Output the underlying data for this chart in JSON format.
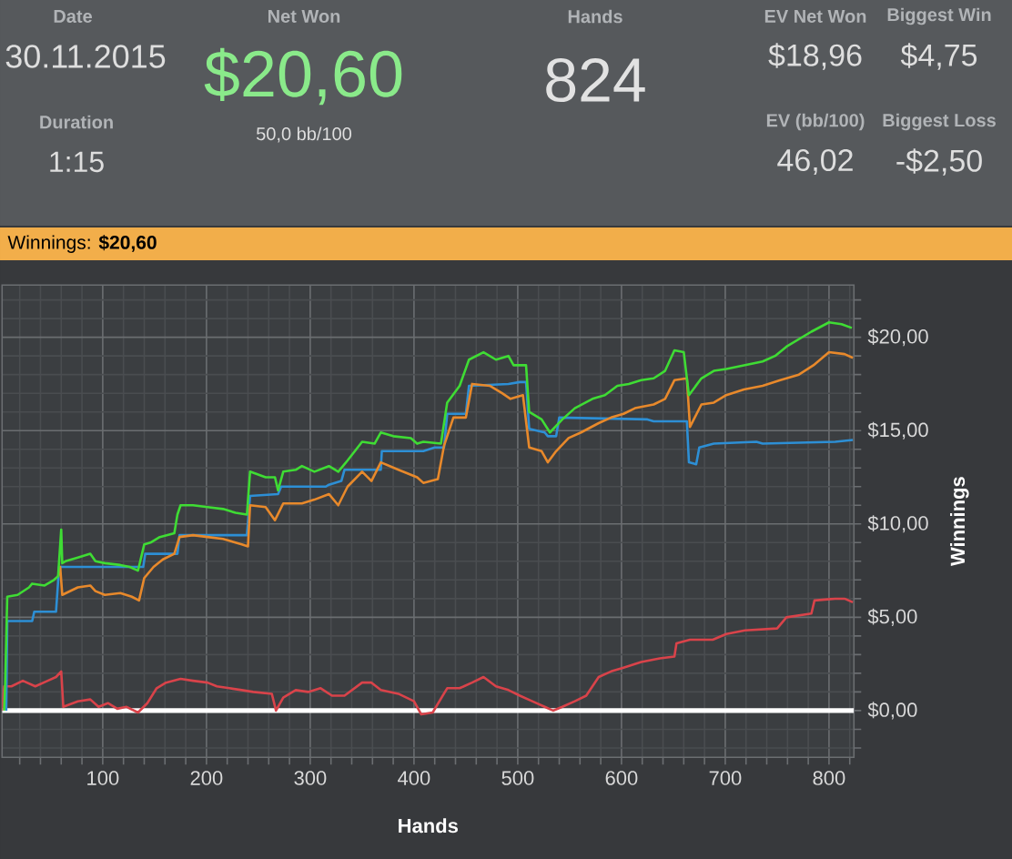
{
  "chart_data": [
    {
      "type": "other",
      "annotations": [
        "Date",
        "30.11.2015",
        "Duration",
        "1:15",
        "Net Won",
        "$20,60",
        "50,0 bb/100",
        "Hands",
        "824",
        "EV Net Won",
        "$18,96",
        "Biggest Win",
        "$4,75",
        "EV (bb/100)",
        "46,02",
        "Biggest Loss",
        "-$2,50"
      ]
    },
    {
      "type": "line",
      "title": "Winnings: **$20,60**",
      "xlabel": "Hands",
      "ylabel": "Winnings",
      "xlim": [
        3,
        824
      ],
      "ylim": [
        -2.5,
        22.8
      ],
      "xticks": [
        {
          "value": 20,
          "label": null
        },
        {
          "value": 40,
          "label": null
        },
        {
          "value": 60,
          "label": null
        },
        {
          "value": 80,
          "label": null
        },
        100,
        {
          "value": 120,
          "label": null
        },
        {
          "value": 140,
          "label": null
        },
        {
          "value": 160,
          "label": null
        },
        {
          "value": 180,
          "label": null
        },
        200,
        {
          "value": 220,
          "label": null
        },
        {
          "value": 240,
          "label": null
        },
        {
          "value": 260,
          "label": null
        },
        {
          "value": 280,
          "label": null
        },
        300,
        {
          "value": 320,
          "label": null
        },
        {
          "value": 340,
          "label": null
        },
        {
          "value": 360,
          "label": null
        },
        {
          "value": 380,
          "label": null
        },
        400,
        {
          "value": 420,
          "label": null
        },
        {
          "value": 440,
          "label": null
        },
        {
          "value": 460,
          "label": null
        },
        {
          "value": 480,
          "label": null
        },
        500,
        {
          "value": 520,
          "label": null
        },
        {
          "value": 540,
          "label": null
        },
        {
          "value": 560,
          "label": null
        },
        {
          "value": 580,
          "label": null
        },
        600,
        {
          "value": 620,
          "label": null
        },
        {
          "value": 640,
          "label": null
        },
        {
          "value": 660,
          "label": null
        },
        {
          "value": 680,
          "label": null
        },
        700,
        {
          "value": 720,
          "label": null
        },
        {
          "value": 740,
          "label": null
        },
        {
          "value": 760,
          "label": null
        },
        {
          "value": 780,
          "label": null
        },
        800,
        {
          "value": 820,
          "label": null
        }
      ],
      "yticks": [
        {
          "value": -2,
          "label": null
        },
        {
          "value": -1,
          "label": null
        },
        {
          "value": 0,
          "label": "$0,00"
        },
        {
          "value": 1,
          "label": null
        },
        {
          "value": 2,
          "label": null
        },
        {
          "value": 3,
          "label": null
        },
        {
          "value": 4,
          "label": null
        },
        {
          "value": 5,
          "label": "$5,00"
        },
        {
          "value": 6,
          "label": null
        },
        {
          "value": 7,
          "label": null
        },
        {
          "value": 8,
          "label": null
        },
        {
          "value": 9,
          "label": null
        },
        {
          "value": 10,
          "label": "$10,00"
        },
        {
          "value": 11,
          "label": null
        },
        {
          "value": 12,
          "label": null
        },
        {
          "value": 13,
          "label": null
        },
        {
          "value": 14,
          "label": null
        },
        {
          "value": 15,
          "label": "$15,00"
        },
        {
          "value": 16,
          "label": null
        },
        {
          "value": 17,
          "label": null
        },
        {
          "value": 18,
          "label": null
        },
        {
          "value": 19,
          "label": null
        },
        {
          "value": 20,
          "label": "$20,00"
        },
        {
          "value": 21,
          "label": null
        },
        {
          "value": 22,
          "label": null
        }
      ],
      "grid": true,
      "ref_lines": [
        {
          "axis": "y",
          "value": 0,
          "color": "#ffffff"
        }
      ],
      "series": [
        {
          "color": "#3fdc34",
          "x": [
            5,
            6,
            8,
            18,
            29,
            32,
            44,
            53,
            57,
            60,
            61,
            64,
            76,
            88,
            93,
            102,
            117,
            126,
            134,
            140,
            146,
            155,
            169,
            172,
            175,
            187,
            201,
            216,
            228,
            239,
            242,
            257,
            266,
            269,
            274,
            286,
            292,
            304,
            318,
            327,
            336,
            350,
            362,
            368,
            380,
            397,
            403,
            409,
            426,
            432,
            444,
            453,
            467,
            479,
            491,
            496,
            508,
            511,
            523,
            531,
            543,
            555,
            572,
            584,
            596,
            607,
            619,
            631,
            642,
            651,
            660,
            665,
            677,
            689,
            701,
            718,
            736,
            748,
            759,
            783,
            800,
            812,
            822
          ],
          "values": [
            0.0,
            1.5,
            6.1,
            6.2,
            6.6,
            6.8,
            6.7,
            7.0,
            7.2,
            9.7,
            7.9,
            8.0,
            8.2,
            8.4,
            8.0,
            7.9,
            7.8,
            7.7,
            7.5,
            8.9,
            9.0,
            9.3,
            9.5,
            10.5,
            11.0,
            11.0,
            10.9,
            10.8,
            10.6,
            10.5,
            12.8,
            12.5,
            12.5,
            11.8,
            12.8,
            12.9,
            13.1,
            12.8,
            13.1,
            12.8,
            13.4,
            14.4,
            14.3,
            14.9,
            14.7,
            14.6,
            14.3,
            14.4,
            14.3,
            16.5,
            17.4,
            18.8,
            19.2,
            18.8,
            19.0,
            18.5,
            18.5,
            16.0,
            15.6,
            14.9,
            15.6,
            16.2,
            16.7,
            16.9,
            17.4,
            17.5,
            17.7,
            17.8,
            18.2,
            19.3,
            19.2,
            16.9,
            17.8,
            18.2,
            18.3,
            18.5,
            18.7,
            19.0,
            19.5,
            20.3,
            20.8,
            20.7,
            20.5
          ]
        },
        {
          "color": "#e8892b",
          "x": [
            57,
            59,
            61,
            76,
            88,
            93,
            102,
            117,
            128,
            135,
            140,
            149,
            158,
            169,
            174,
            187,
            201,
            216,
            234,
            240,
            242,
            257,
            266,
            274,
            292,
            304,
            318,
            327,
            336,
            350,
            359,
            368,
            385,
            403,
            409,
            423,
            429,
            438,
            450,
            456,
            473,
            485,
            493,
            505,
            511,
            523,
            529,
            537,
            549,
            561,
            578,
            590,
            602,
            613,
            631,
            642,
            651,
            663,
            666,
            677,
            689,
            701,
            718,
            736,
            753,
            771,
            785,
            800,
            815,
            823
          ],
          "values": [
            7.2,
            7.7,
            6.2,
            6.6,
            6.7,
            6.4,
            6.2,
            6.3,
            6.1,
            5.9,
            7.1,
            7.7,
            8.1,
            8.4,
            9.3,
            9.4,
            9.3,
            9.2,
            8.9,
            8.8,
            11.0,
            10.9,
            10.2,
            11.1,
            11.1,
            11.3,
            11.6,
            11.0,
            12.0,
            12.8,
            12.3,
            13.3,
            12.9,
            12.5,
            12.2,
            12.4,
            14.2,
            15.7,
            15.7,
            17.5,
            17.4,
            17.0,
            16.7,
            16.9,
            14.1,
            13.9,
            13.3,
            13.9,
            14.6,
            14.9,
            15.4,
            15.7,
            15.9,
            16.2,
            16.4,
            16.7,
            17.7,
            17.8,
            15.2,
            16.4,
            16.5,
            16.9,
            17.2,
            17.4,
            17.7,
            18.0,
            18.5,
            19.2,
            19.1,
            18.9
          ]
        },
        {
          "color": "#2d8fd5",
          "x": [
            7,
            8,
            32,
            34,
            55,
            58,
            139,
            141,
            172,
            174,
            239,
            242,
            269,
            272,
            315,
            318,
            330,
            333,
            368,
            369,
            409,
            420,
            429,
            432,
            450,
            453,
            491,
            502,
            508,
            511,
            526,
            529,
            537,
            540,
            625,
            631,
            663,
            665,
            672,
            675,
            689,
            730,
            736,
            806,
            823
          ],
          "values": [
            0.0,
            4.8,
            4.8,
            5.3,
            5.3,
            7.7,
            7.7,
            8.4,
            8.4,
            9.4,
            9.4,
            11.5,
            11.6,
            12.0,
            12.0,
            12.1,
            12.3,
            12.9,
            12.9,
            13.9,
            13.9,
            14.1,
            14.1,
            15.9,
            15.9,
            17.4,
            17.5,
            17.6,
            17.6,
            15.1,
            14.9,
            14.7,
            14.7,
            15.7,
            15.6,
            15.5,
            15.5,
            13.3,
            13.2,
            14.1,
            14.3,
            14.4,
            14.3,
            14.4,
            14.5
          ]
        },
        {
          "color": "#d9434a",
          "x": [
            3,
            5,
            12,
            23,
            35,
            47,
            55,
            60,
            62,
            76,
            88,
            96,
            105,
            114,
            123,
            134,
            143,
            152,
            161,
            175,
            187,
            201,
            210,
            222,
            234,
            245,
            263,
            267,
            274,
            286,
            298,
            310,
            321,
            333,
            350,
            359,
            368,
            385,
            400,
            407,
            418,
            432,
            444,
            456,
            467,
            479,
            491,
            502,
            514,
            526,
            534,
            543,
            555,
            566,
            578,
            590,
            602,
            619,
            637,
            651,
            653,
            666,
            688,
            701,
            719,
            750,
            759,
            783,
            786,
            806,
            815,
            823
          ],
          "values": [
            0.0,
            1.3,
            1.3,
            1.6,
            1.3,
            1.6,
            1.8,
            2.1,
            0.2,
            0.5,
            0.6,
            0.2,
            0.4,
            0.1,
            0.2,
            -0.1,
            0.4,
            1.2,
            1.5,
            1.7,
            1.6,
            1.5,
            1.3,
            1.2,
            1.1,
            1.0,
            0.9,
            0.0,
            0.7,
            1.1,
            1.0,
            1.2,
            0.8,
            0.8,
            1.5,
            1.5,
            1.1,
            0.9,
            0.5,
            -0.2,
            -0.1,
            1.2,
            1.2,
            1.5,
            1.8,
            1.3,
            1.1,
            0.8,
            0.5,
            0.2,
            0.0,
            0.2,
            0.5,
            0.8,
            1.8,
            2.1,
            2.3,
            2.6,
            2.8,
            2.9,
            3.6,
            3.8,
            3.8,
            4.1,
            4.3,
            4.4,
            5.0,
            5.2,
            5.9,
            6.0,
            6.0,
            5.8
          ]
        }
      ]
    }
  ]
}
